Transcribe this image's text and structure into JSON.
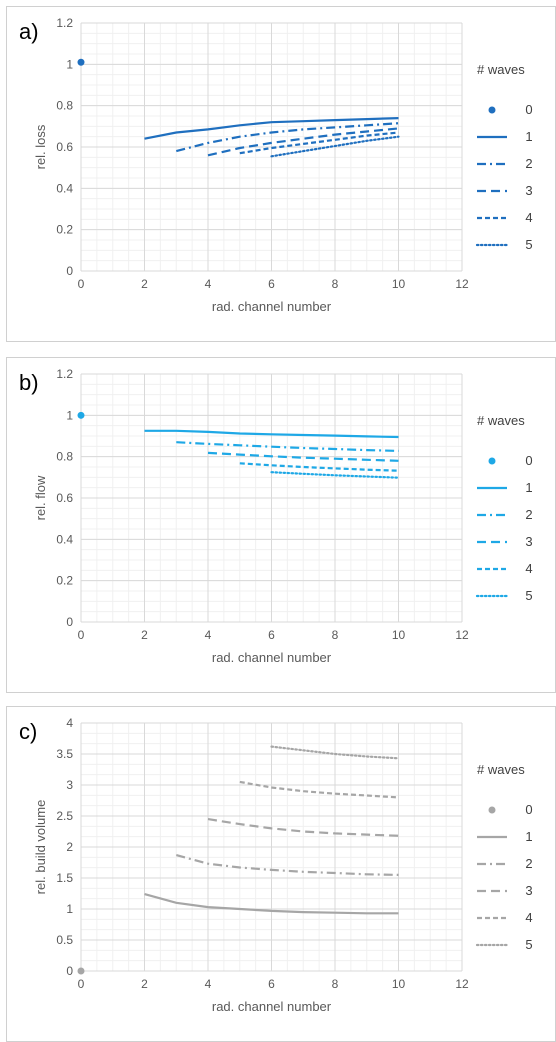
{
  "chart_data": [
    {
      "type": "line",
      "panel_label": "a)",
      "xlabel": "rad. channel number",
      "ylabel": "rel. loss",
      "xlim": [
        0,
        12
      ],
      "ylim": [
        0,
        1.2
      ],
      "xticks": [
        0,
        2,
        4,
        6,
        8,
        10,
        12
      ],
      "yticks": [
        0,
        0.2,
        0.4,
        0.6,
        0.8,
        1,
        1.2
      ],
      "ytick_labels": [
        "0",
        "0.2",
        "0.4",
        "0.6",
        "0.8",
        "1",
        "1.2"
      ],
      "color": "#1f6fbf",
      "grid": true,
      "legend_title": "# waves",
      "legend_position": "right",
      "series": [
        {
          "name": "0",
          "style": "point",
          "x": [
            0
          ],
          "y": [
            1.01
          ]
        },
        {
          "name": "1",
          "style": "solid",
          "x": [
            2,
            3,
            4,
            5,
            6,
            7,
            8,
            9,
            10
          ],
          "y": [
            0.64,
            0.67,
            0.685,
            0.705,
            0.72,
            0.725,
            0.73,
            0.735,
            0.74
          ]
        },
        {
          "name": "2",
          "style": "dashdot",
          "x": [
            3,
            4,
            5,
            6,
            7,
            8,
            9,
            10
          ],
          "y": [
            0.58,
            0.62,
            0.65,
            0.67,
            0.685,
            0.695,
            0.705,
            0.715
          ]
        },
        {
          "name": "3",
          "style": "longdash",
          "x": [
            4,
            5,
            6,
            7,
            8,
            9,
            10
          ],
          "y": [
            0.56,
            0.595,
            0.62,
            0.64,
            0.66,
            0.675,
            0.69
          ]
        },
        {
          "name": "4",
          "style": "dash",
          "x": [
            5,
            6,
            7,
            8,
            9,
            10
          ],
          "y": [
            0.57,
            0.595,
            0.615,
            0.635,
            0.655,
            0.67
          ]
        },
        {
          "name": "5",
          "style": "dot",
          "x": [
            6,
            7,
            8,
            9,
            10
          ],
          "y": [
            0.555,
            0.58,
            0.605,
            0.63,
            0.65
          ]
        }
      ]
    },
    {
      "type": "line",
      "panel_label": "b)",
      "xlabel": "rad. channel number",
      "ylabel": "rel. flow",
      "xlim": [
        0,
        12
      ],
      "ylim": [
        0,
        1.2
      ],
      "xticks": [
        0,
        2,
        4,
        6,
        8,
        10,
        12
      ],
      "yticks": [
        0,
        0.2,
        0.4,
        0.6,
        0.8,
        1,
        1.2
      ],
      "ytick_labels": [
        "0",
        "0.2",
        "0.4",
        "0.6",
        "0.8",
        "1",
        "1.2"
      ],
      "color": "#1ea8e6",
      "grid": true,
      "legend_title": "# waves",
      "legend_position": "right",
      "series": [
        {
          "name": "0",
          "style": "point",
          "x": [
            0
          ],
          "y": [
            1.0
          ]
        },
        {
          "name": "1",
          "style": "solid",
          "x": [
            2,
            3,
            4,
            5,
            6,
            7,
            8,
            9,
            10
          ],
          "y": [
            0.925,
            0.925,
            0.92,
            0.912,
            0.908,
            0.905,
            0.902,
            0.898,
            0.895
          ]
        },
        {
          "name": "2",
          "style": "dashdot",
          "x": [
            3,
            4,
            5,
            6,
            7,
            8,
            9,
            10
          ],
          "y": [
            0.87,
            0.862,
            0.855,
            0.848,
            0.842,
            0.837,
            0.832,
            0.828
          ]
        },
        {
          "name": "3",
          "style": "longdash",
          "x": [
            4,
            5,
            6,
            7,
            8,
            9,
            10
          ],
          "y": [
            0.818,
            0.81,
            0.802,
            0.795,
            0.79,
            0.785,
            0.78
          ]
        },
        {
          "name": "4",
          "style": "dash",
          "x": [
            5,
            6,
            7,
            8,
            9,
            10
          ],
          "y": [
            0.768,
            0.758,
            0.75,
            0.743,
            0.737,
            0.732
          ]
        },
        {
          "name": "5",
          "style": "dot",
          "x": [
            6,
            7,
            8,
            9,
            10
          ],
          "y": [
            0.725,
            0.717,
            0.71,
            0.704,
            0.698
          ]
        }
      ]
    },
    {
      "type": "line",
      "panel_label": "c)",
      "xlabel": "rad. channel number",
      "ylabel": "rel. build volume",
      "xlim": [
        0,
        12
      ],
      "ylim": [
        0,
        4
      ],
      "xticks": [
        0,
        2,
        4,
        6,
        8,
        10,
        12
      ],
      "yticks": [
        0,
        0.5,
        1,
        1.5,
        2,
        2.5,
        3,
        3.5,
        4
      ],
      "ytick_labels": [
        "0",
        "0.5",
        "1",
        "1.5",
        "2",
        "2.5",
        "3",
        "3.5",
        "4"
      ],
      "color": "#a6a6a6",
      "grid": true,
      "legend_title": "# waves",
      "legend_position": "right",
      "series": [
        {
          "name": "0",
          "style": "point",
          "x": [
            0
          ],
          "y": [
            0
          ]
        },
        {
          "name": "1",
          "style": "solid",
          "x": [
            2,
            3,
            4,
            5,
            6,
            7,
            8,
            9,
            10
          ],
          "y": [
            1.24,
            1.1,
            1.03,
            1.0,
            0.97,
            0.95,
            0.94,
            0.93,
            0.93
          ]
        },
        {
          "name": "2",
          "style": "dashdot",
          "x": [
            3,
            4,
            5,
            6,
            7,
            8,
            9,
            10
          ],
          "y": [
            1.87,
            1.73,
            1.67,
            1.63,
            1.6,
            1.58,
            1.56,
            1.55
          ]
        },
        {
          "name": "3",
          "style": "longdash",
          "x": [
            4,
            5,
            6,
            7,
            8,
            9,
            10
          ],
          "y": [
            2.45,
            2.37,
            2.3,
            2.25,
            2.22,
            2.2,
            2.18
          ]
        },
        {
          "name": "4",
          "style": "dash",
          "x": [
            5,
            6,
            7,
            8,
            9,
            10
          ],
          "y": [
            3.05,
            2.96,
            2.9,
            2.86,
            2.83,
            2.8
          ]
        },
        {
          "name": "5",
          "style": "dot",
          "x": [
            6,
            7,
            8,
            9,
            10
          ],
          "y": [
            3.62,
            3.56,
            3.5,
            3.46,
            3.43
          ]
        }
      ]
    }
  ]
}
